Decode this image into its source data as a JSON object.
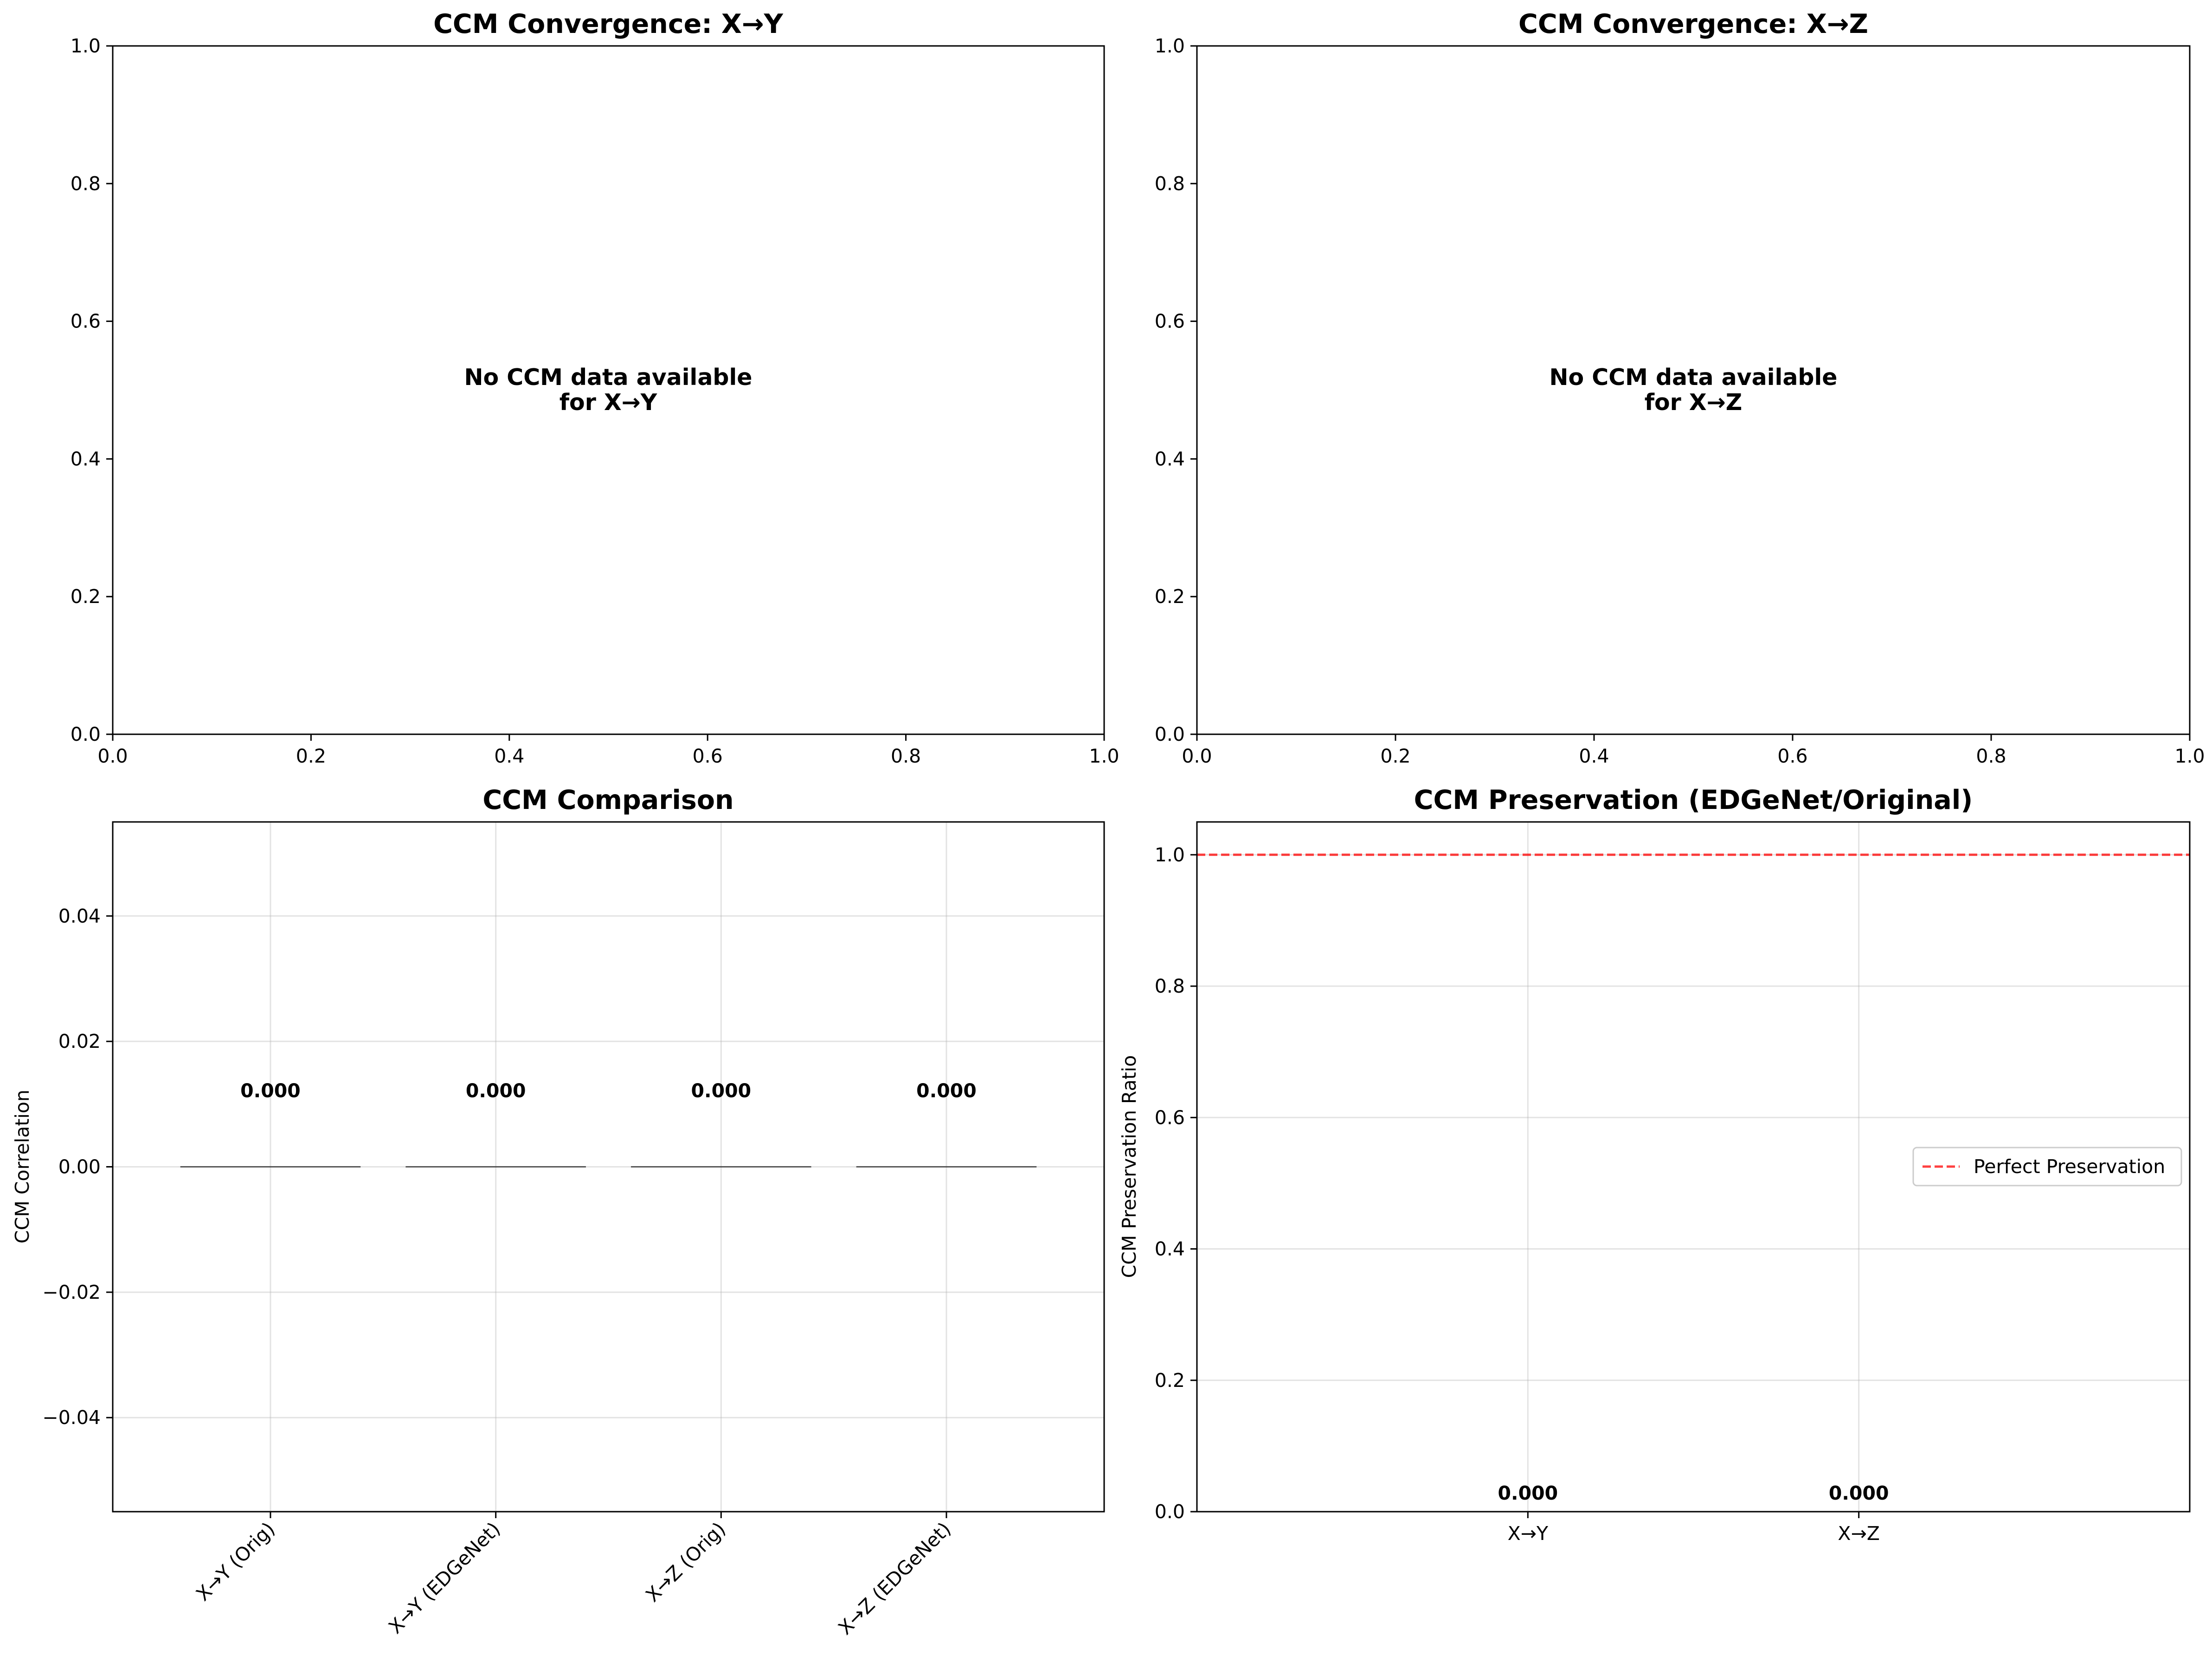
{
  "colors": {
    "bar_edge": "#333333",
    "reference_line": "#ff0000",
    "grid": "#b0b0b0",
    "axis": "#000000"
  },
  "chart_data": [
    {
      "type": "line",
      "title": "CCM Convergence: X→Y",
      "xlim": [
        0.0,
        1.0
      ],
      "ylim": [
        0.0,
        1.0
      ],
      "xticks": [
        "0.0",
        "0.2",
        "0.4",
        "0.6",
        "0.8",
        "1.0"
      ],
      "yticks": [
        "0.0",
        "0.2",
        "0.4",
        "0.6",
        "0.8",
        "1.0"
      ],
      "grid": false,
      "series": [],
      "message_line1": "No CCM data available",
      "message_line2": "for X→Y"
    },
    {
      "type": "line",
      "title": "CCM Convergence: X→Z",
      "xlim": [
        0.0,
        1.0
      ],
      "ylim": [
        0.0,
        1.0
      ],
      "xticks": [
        "0.0",
        "0.2",
        "0.4",
        "0.6",
        "0.8",
        "1.0"
      ],
      "yticks": [
        "0.0",
        "0.2",
        "0.4",
        "0.6",
        "0.8",
        "1.0"
      ],
      "grid": false,
      "series": [],
      "message_line1": "No CCM data available",
      "message_line2": "for X→Z"
    },
    {
      "type": "bar",
      "title": "CCM Comparison",
      "ylabel": "CCM Correlation",
      "ylim": [
        -0.055,
        0.055
      ],
      "yticks": [
        "−0.04",
        "−0.02",
        "0.00",
        "0.02",
        "0.04"
      ],
      "ytick_values": [
        -0.04,
        -0.02,
        0.0,
        0.02,
        0.04
      ],
      "grid": true,
      "categories": [
        "X→Y (Orig)",
        "X→Y (EDGeNet)",
        "X→Z (Orig)",
        "X→Z (EDGeNet)"
      ],
      "values": [
        0.0,
        0.0,
        0.0,
        0.0
      ],
      "data_labels": [
        "0.000",
        "0.000",
        "0.000",
        "0.000"
      ]
    },
    {
      "type": "bar",
      "title": "CCM Preservation (EDGeNet/Original)",
      "ylabel": "CCM Preservation Ratio",
      "ylim": [
        0.0,
        1.05
      ],
      "yticks": [
        "0.0",
        "0.2",
        "0.4",
        "0.6",
        "0.8",
        "1.0"
      ],
      "ytick_values": [
        0.0,
        0.2,
        0.4,
        0.6,
        0.8,
        1.0
      ],
      "grid": true,
      "categories": [
        "X→Y",
        "X→Z"
      ],
      "values": [
        0.0,
        0.0
      ],
      "data_labels": [
        "0.000",
        "0.000"
      ],
      "reference_line": {
        "y": 1.0,
        "style": "dashed",
        "label": "Perfect Preservation"
      },
      "legend_position": "center-right"
    }
  ]
}
